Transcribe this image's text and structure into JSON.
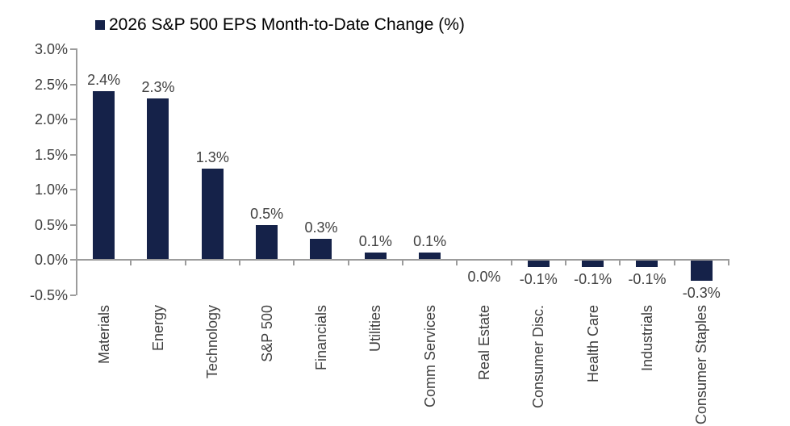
{
  "chart_data": {
    "type": "bar",
    "title": "2026 S&P 500 EPS Month-to-Date Change (%)",
    "categories": [
      "Materials",
      "Energy",
      "Technology",
      "S&P 500",
      "Financials",
      "Utilities",
      "Comm Services",
      "Real Estate",
      "Consumer Disc.",
      "Health Care",
      "Industrials",
      "Consumer Staples"
    ],
    "values": [
      2.4,
      2.3,
      1.3,
      0.5,
      0.3,
      0.1,
      0.1,
      0.0,
      -0.1,
      -0.1,
      -0.1,
      -0.3
    ],
    "value_labels": [
      "2.4%",
      "2.3%",
      "1.3%",
      "0.5%",
      "0.3%",
      "0.1%",
      "0.1%",
      "0.0%",
      "-0.1%",
      "-0.1%",
      "-0.1%",
      "-0.3%"
    ],
    "xlabel": "",
    "ylabel": "",
    "ylim": [
      -0.5,
      3.0
    ],
    "ytick_values": [
      3.0,
      2.5,
      2.0,
      1.5,
      1.0,
      0.5,
      0.0,
      -0.5
    ],
    "ytick_labels": [
      "3.0%",
      "2.5%",
      "2.0%",
      "1.5%",
      "1.0%",
      "0.5%",
      "0.0%",
      "-0.5%"
    ],
    "grid": false,
    "legend_position": "top-left",
    "bar_color": "#152249",
    "axis_color": "#9c9c9c",
    "label_color": "#404040",
    "title_color": "#000000"
  }
}
